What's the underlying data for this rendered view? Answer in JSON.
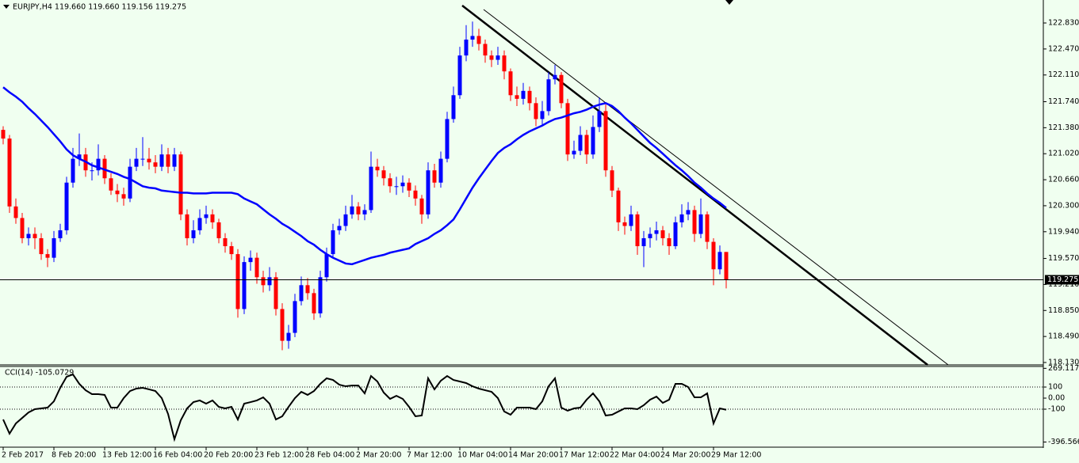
{
  "chart_data": {
    "type": "candlestick",
    "title": "EURJPY,H4  119.660 119.660 119.156 119.275",
    "categories": [
      "2 Feb 2017",
      null,
      null,
      null,
      null,
      null,
      null,
      null,
      "8 Feb 20:00",
      null,
      null,
      null,
      null,
      null,
      null,
      null,
      "13 Feb 12:00",
      null,
      null,
      null,
      null,
      null,
      null,
      null,
      "16 Feb 04:00",
      null,
      null,
      null,
      null,
      null,
      null,
      null,
      "20 Feb 20:00",
      null,
      null,
      null,
      null,
      null,
      null,
      null,
      "23 Feb 12:00",
      null,
      null,
      null,
      null,
      null,
      null,
      null,
      "28 Feb 04:00",
      null,
      null,
      null,
      null,
      null,
      null,
      null,
      "2 Mar 20:00",
      null,
      null,
      null,
      null,
      null,
      null,
      null,
      "7 Mar 12:00",
      null,
      null,
      null,
      null,
      null,
      null,
      null,
      "10 Mar 04:00",
      null,
      null,
      null,
      null,
      null,
      null,
      null,
      "14 Mar 20:00",
      null,
      null,
      null,
      null,
      null,
      null,
      null,
      "17 Mar 12:00",
      null,
      null,
      null,
      null,
      null,
      null,
      null,
      "22 Mar 04:00",
      null,
      null,
      null,
      null,
      null,
      null,
      null,
      "24 Mar 20:00",
      null,
      null,
      null,
      null,
      null,
      null,
      null,
      "29 Mar 12:00",
      null,
      null
    ],
    "open": [
      121.35,
      121.23,
      120.29,
      120.13,
      119.85,
      119.91,
      119.85,
      119.63,
      119.58,
      119.85,
      119.96,
      120.62,
      120.95,
      121.01,
      120.79,
      120.79,
      120.95,
      120.68,
      120.51,
      120.46,
      120.4,
      120.84,
      120.95,
      120.95,
      120.9,
      120.84,
      121.01,
      120.84,
      121.01,
      120.18,
      119.85,
      119.96,
      120.13,
      120.18,
      120.07,
      119.85,
      119.74,
      119.63,
      118.87,
      119.52,
      119.58,
      119.31,
      119.2,
      119.31,
      118.87,
      118.43,
      118.54,
      118.98,
      119.2,
      119.09,
      118.81,
      119.31,
      119.63,
      119.96,
      120.02,
      120.18,
      120.29,
      120.18,
      120.24,
      120.84,
      120.79,
      120.68,
      120.57,
      120.57,
      120.62,
      120.51,
      120.4,
      120.18,
      120.79,
      120.62,
      120.95,
      121.5,
      121.83,
      122.38,
      122.6,
      122.65,
      122.54,
      122.38,
      122.32,
      122.38,
      122.16,
      121.83,
      121.78,
      121.89,
      121.72,
      121.5,
      121.61,
      122.05,
      122.11,
      121.72,
      121.01,
      121.06,
      121.28,
      121.01,
      121.39,
      121.61,
      120.79,
      120.51,
      120.07,
      120.02,
      120.18,
      119.74,
      119.85,
      119.91,
      119.96,
      119.85,
      119.74,
      120.07,
      120.18,
      120.24,
      119.91,
      120.18,
      119.8,
      119.42,
      119.66
    ],
    "high": [
      121.4,
      121.28,
      120.4,
      120.2,
      120.0,
      120.0,
      119.92,
      119.7,
      119.95,
      120.05,
      120.7,
      121.1,
      121.3,
      121.1,
      120.9,
      121.15,
      121.0,
      120.75,
      120.6,
      120.55,
      120.95,
      121.1,
      121.25,
      121.1,
      121.0,
      121.15,
      121.1,
      121.1,
      121.05,
      120.25,
      120.1,
      120.25,
      120.3,
      120.25,
      120.12,
      119.92,
      119.8,
      119.7,
      119.6,
      119.68,
      119.65,
      119.4,
      119.45,
      119.38,
      118.95,
      118.65,
      119.08,
      119.32,
      119.3,
      119.15,
      119.4,
      119.72,
      120.05,
      120.12,
      120.3,
      120.45,
      120.35,
      120.32,
      121.05,
      120.95,
      120.85,
      120.75,
      120.7,
      120.72,
      120.68,
      120.58,
      120.45,
      120.9,
      120.88,
      121.05,
      121.6,
      121.95,
      122.5,
      122.8,
      122.85,
      122.75,
      122.6,
      122.45,
      122.5,
      122.45,
      122.2,
      121.95,
      122.0,
      121.95,
      121.8,
      121.75,
      122.15,
      122.25,
      122.15,
      121.78,
      121.2,
      121.4,
      121.35,
      121.55,
      121.8,
      121.7,
      120.85,
      120.55,
      120.15,
      120.3,
      120.22,
      119.95,
      120.0,
      120.08,
      120.02,
      119.92,
      120.15,
      120.32,
      120.35,
      120.3,
      120.4,
      120.22,
      119.85,
      119.75,
      119.66
    ],
    "low": [
      121.15,
      120.2,
      120.05,
      119.78,
      119.75,
      119.7,
      119.55,
      119.45,
      119.52,
      119.8,
      119.9,
      120.55,
      120.85,
      120.7,
      120.65,
      120.72,
      120.6,
      120.45,
      120.35,
      120.3,
      120.35,
      120.78,
      120.85,
      120.8,
      120.75,
      120.78,
      120.75,
      120.78,
      120.1,
      119.75,
      119.78,
      119.9,
      120.05,
      119.98,
      119.78,
      119.65,
      119.55,
      118.75,
      118.8,
      119.4,
      119.22,
      119.1,
      119.12,
      118.78,
      118.3,
      118.32,
      118.48,
      118.92,
      119.0,
      118.72,
      118.75,
      119.25,
      119.58,
      119.9,
      119.95,
      120.12,
      120.1,
      120.1,
      120.2,
      120.7,
      120.58,
      120.48,
      120.45,
      120.48,
      120.42,
      120.3,
      120.05,
      120.12,
      120.55,
      120.55,
      120.9,
      121.45,
      121.78,
      122.3,
      122.5,
      122.45,
      122.28,
      122.22,
      122.25,
      122.05,
      121.75,
      121.68,
      121.7,
      121.62,
      121.4,
      121.42,
      121.55,
      121.98,
      121.65,
      120.92,
      120.95,
      121.0,
      120.88,
      120.95,
      121.32,
      120.7,
      120.42,
      119.95,
      119.9,
      119.95,
      119.62,
      119.45,
      119.72,
      119.82,
      119.75,
      119.62,
      119.7,
      120.0,
      120.1,
      119.8,
      119.85,
      119.7,
      119.2,
      119.35,
      119.156
    ],
    "close": [
      121.23,
      120.29,
      120.13,
      119.85,
      119.91,
      119.85,
      119.63,
      119.58,
      119.85,
      119.96,
      120.62,
      120.95,
      121.01,
      120.79,
      120.79,
      120.95,
      120.68,
      120.51,
      120.46,
      120.4,
      120.84,
      120.95,
      120.95,
      120.9,
      120.84,
      121.01,
      120.84,
      121.01,
      120.18,
      119.85,
      119.96,
      120.13,
      120.18,
      120.07,
      119.85,
      119.74,
      119.63,
      118.87,
      119.52,
      119.58,
      119.31,
      119.2,
      119.31,
      118.87,
      118.43,
      118.54,
      118.98,
      119.2,
      119.09,
      118.81,
      119.31,
      119.63,
      119.96,
      120.02,
      120.18,
      120.29,
      120.18,
      120.24,
      120.84,
      120.79,
      120.68,
      120.57,
      120.57,
      120.62,
      120.51,
      120.4,
      120.18,
      120.79,
      120.62,
      120.95,
      121.5,
      121.83,
      122.38,
      122.6,
      122.65,
      122.54,
      122.38,
      122.32,
      122.38,
      122.16,
      121.83,
      121.78,
      121.89,
      121.72,
      121.5,
      121.61,
      122.05,
      122.11,
      121.72,
      121.01,
      121.06,
      121.28,
      121.01,
      121.39,
      121.61,
      120.79,
      120.51,
      120.07,
      120.02,
      120.18,
      119.74,
      119.85,
      119.91,
      119.96,
      119.85,
      119.74,
      120.07,
      120.18,
      120.24,
      119.91,
      120.18,
      119.8,
      119.42,
      119.66,
      119.275
    ],
    "up_color": "#0000ff",
    "down_color": "#ff0000",
    "ylim": [
      118.097,
      123.148
    ],
    "yticks": [
      {
        "value": 122.83,
        "label": "122.830"
      },
      {
        "value": 122.47,
        "label": "122.470"
      },
      {
        "value": 122.11,
        "label": "122.110"
      },
      {
        "value": 121.74,
        "label": "121.740"
      },
      {
        "value": 121.38,
        "label": "121.380"
      },
      {
        "value": 121.02,
        "label": "121.020"
      },
      {
        "value": 120.66,
        "label": "120.660"
      },
      {
        "value": 120.3,
        "label": "120.300"
      },
      {
        "value": 119.94,
        "label": "119.940"
      },
      {
        "value": 119.57,
        "label": "119.570"
      },
      {
        "value": 119.21,
        "label": "119.210"
      },
      {
        "value": 118.85,
        "label": "118.850"
      },
      {
        "value": 118.49,
        "label": "118.490"
      },
      {
        "value": 118.13,
        "label": "118.130"
      }
    ],
    "last_price": 119.275,
    "moving_average": {
      "color": "#0000ff",
      "values": [
        121.94,
        121.87,
        121.81,
        121.74,
        121.65,
        121.57,
        121.48,
        121.39,
        121.29,
        121.19,
        121.08,
        121.0,
        120.95,
        120.91,
        120.86,
        120.83,
        120.8,
        120.77,
        120.74,
        120.7,
        120.67,
        120.62,
        120.57,
        120.55,
        120.54,
        120.51,
        120.5,
        120.49,
        120.48,
        120.48,
        120.47,
        120.47,
        120.47,
        120.48,
        120.48,
        120.48,
        120.48,
        120.46,
        120.4,
        120.36,
        120.32,
        120.25,
        120.18,
        120.12,
        120.05,
        120.0,
        119.94,
        119.88,
        119.81,
        119.76,
        119.69,
        119.63,
        119.58,
        119.54,
        119.5,
        119.49,
        119.52,
        119.55,
        119.58,
        119.6,
        119.62,
        119.65,
        119.67,
        119.69,
        119.71,
        119.77,
        119.81,
        119.85,
        119.91,
        119.96,
        120.03,
        120.11,
        120.25,
        120.4,
        120.55,
        120.68,
        120.8,
        120.92,
        121.03,
        121.1,
        121.15,
        121.22,
        121.28,
        121.33,
        121.37,
        121.41,
        121.46,
        121.5,
        121.52,
        121.55,
        121.58,
        121.6,
        121.63,
        121.67,
        121.7,
        121.72,
        121.68,
        121.61,
        121.52,
        121.44,
        121.35,
        121.26,
        121.17,
        121.1,
        121.02,
        120.94,
        120.86,
        120.79,
        120.71,
        120.62,
        120.55,
        120.47,
        120.4,
        120.34,
        120.27
      ]
    },
    "cci": {
      "label": "CCI(14) -105.0729",
      "color": "#000000",
      "values": [
        -193,
        -321,
        -229,
        -179,
        -129,
        -100,
        -93,
        -86,
        -29,
        93,
        193,
        214,
        129,
        71,
        36,
        36,
        29,
        -86,
        -86,
        0,
        64,
        86,
        93,
        79,
        64,
        0,
        -143,
        -371,
        -200,
        -93,
        -36,
        -21,
        -50,
        -21,
        -79,
        -93,
        -79,
        -193,
        -50,
        -36,
        -21,
        7,
        -50,
        -193,
        -164,
        -79,
        0,
        57,
        29,
        64,
        129,
        179,
        164,
        121,
        107,
        114,
        114,
        43,
        200,
        150,
        50,
        -7,
        21,
        -7,
        -79,
        -164,
        -157,
        179,
        79,
        157,
        200,
        164,
        150,
        136,
        107,
        86,
        71,
        57,
        0,
        -121,
        -150,
        -86,
        -86,
        -86,
        -100,
        -29,
        107,
        179,
        -86,
        -114,
        -93,
        -86,
        -14,
        43,
        -29,
        -157,
        -150,
        -121,
        -93,
        -93,
        -100,
        -64,
        -14,
        14,
        -43,
        -14,
        129,
        129,
        100,
        7,
        7,
        43,
        -229,
        -93,
        -105.0729
      ],
      "ylim": [
        -443,
        286
      ],
      "yticks": [
        269.1173,
        100,
        {
          "value": 0,
          "label": "0.00"
        },
        -100,
        -396.5664
      ],
      "levels": [
        100,
        -100
      ]
    }
  }
}
